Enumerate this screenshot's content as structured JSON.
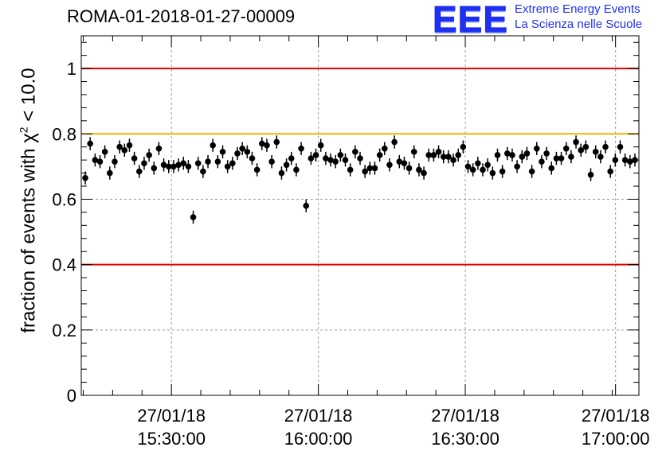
{
  "header": {
    "title": "ROMA-01-2018-01-27-00009",
    "logo_mark": "EEE",
    "logo_line1": "Extreme Energy Events",
    "logo_line2": "La Scienza nelle Scuole"
  },
  "chart_data": {
    "type": "scatter",
    "title": "ROMA-01-2018-01-27-00009",
    "xlabel": "",
    "ylabel": {
      "pre": "fraction of events with χ",
      "sup": "2",
      "post": " < 10.0"
    },
    "xlim": [
      0,
      167
    ],
    "ylim": [
      0,
      1.1
    ],
    "yticks": [
      0,
      0.2,
      0.4,
      0.6,
      0.8,
      1
    ],
    "ytick_labels": [
      "0",
      "0.2",
      "0.4",
      "0.6",
      "0.8",
      "1"
    ],
    "xticks": [
      {
        "x": 27,
        "date": "27/01/18",
        "time": "15:30:00"
      },
      {
        "x": 71,
        "date": "27/01/18",
        "time": "16:00:00"
      },
      {
        "x": 115,
        "date": "27/01/18",
        "time": "16:30:00"
      },
      {
        "x": 160,
        "date": "27/01/18",
        "time": "17:00:00"
      }
    ],
    "grid": true,
    "reference_lines": [
      {
        "y": 1.0,
        "color": "#e00000"
      },
      {
        "y": 0.8,
        "color": "#f0b400"
      },
      {
        "y": 0.4,
        "color": "#e00000"
      }
    ],
    "error": 0.02,
    "marker_color": "#000000",
    "series": [
      {
        "values": [
          0.665,
          0.77,
          0.72,
          0.715,
          0.745,
          0.68,
          0.715,
          0.76,
          0.75,
          0.765,
          0.725,
          0.685,
          0.71,
          0.735,
          0.695,
          0.755,
          0.705,
          0.7,
          0.7,
          0.705,
          0.71,
          0.7,
          0.545,
          0.71,
          0.685,
          0.715,
          0.765,
          0.715,
          0.745,
          0.7,
          0.71,
          0.74,
          0.755,
          0.745,
          0.725,
          0.69,
          0.77,
          0.765,
          0.715,
          0.775,
          0.68,
          0.705,
          0.725,
          0.69,
          0.755,
          0.58,
          0.725,
          0.735,
          0.765,
          0.725,
          0.72,
          0.715,
          0.735,
          0.72,
          0.69,
          0.745,
          0.725,
          0.685,
          0.695,
          0.695,
          0.735,
          0.755,
          0.705,
          0.775,
          0.715,
          0.71,
          0.695,
          0.745,
          0.69,
          0.68,
          0.735,
          0.735,
          0.745,
          0.73,
          0.73,
          0.72,
          0.735,
          0.76,
          0.7,
          0.69,
          0.71,
          0.69,
          0.705,
          0.68,
          0.735,
          0.685,
          0.74,
          0.735,
          0.7,
          0.73,
          0.74,
          0.685,
          0.755,
          0.715,
          0.74,
          0.695,
          0.725,
          0.725,
          0.755,
          0.73,
          0.775,
          0.75,
          0.76,
          0.675,
          0.745,
          0.73,
          0.76,
          0.685,
          0.72,
          0.76,
          0.72,
          0.715,
          0.72
        ]
      }
    ]
  }
}
